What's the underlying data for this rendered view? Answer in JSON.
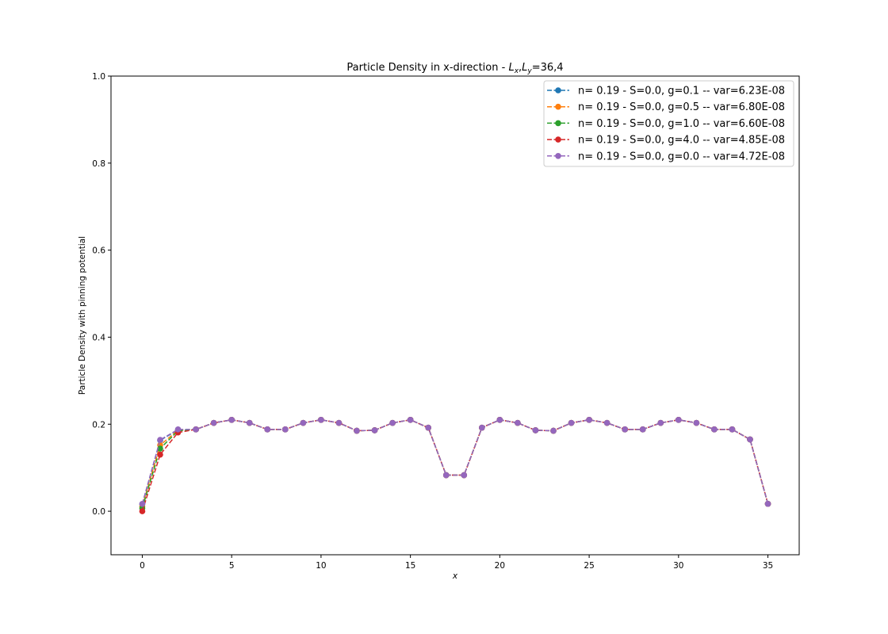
{
  "chart_data": {
    "type": "line",
    "title_main": "Particle Density in x-direction - ",
    "title_lx": "L",
    "title_lx_sub": "x",
    "title_sep": ",",
    "title_ly": "L",
    "title_ly_sub": "y",
    "title_tail": "=36,4",
    "xlabel": "x",
    "ylabel": "Particle Density with pinning potential",
    "xlim": [
      -1.75,
      36.75
    ],
    "ylim": [
      -0.1,
      1.0
    ],
    "xticks": [
      0,
      5,
      10,
      15,
      20,
      25,
      30,
      35
    ],
    "yticks": [
      0.0,
      0.2,
      0.4,
      0.6,
      0.8,
      1.0
    ],
    "ytick_labels": [
      "0.0",
      "0.2",
      "0.4",
      "0.6",
      "0.8",
      "1.0"
    ],
    "grid": false,
    "legend_position": "top-right",
    "x": [
      0,
      1,
      2,
      3,
      4,
      5,
      6,
      7,
      8,
      9,
      10,
      11,
      12,
      13,
      14,
      15,
      16,
      17,
      18,
      19,
      20,
      21,
      22,
      23,
      24,
      25,
      26,
      27,
      28,
      29,
      30,
      31,
      32,
      33,
      34,
      35
    ],
    "series": [
      {
        "name": "n= 0.19 - S=0.0, g=0.1 -- var=6.23E-08",
        "color": "#1f77b4",
        "values": [
          0.016,
          0.163,
          0.187,
          0.188,
          0.203,
          0.21,
          0.203,
          0.188,
          0.188,
          0.203,
          0.21,
          0.203,
          0.185,
          0.186,
          0.203,
          0.21,
          0.192,
          0.083,
          0.083,
          0.192,
          0.21,
          0.203,
          0.186,
          0.185,
          0.203,
          0.21,
          0.203,
          0.188,
          0.188,
          0.203,
          0.21,
          0.203,
          0.188,
          0.188,
          0.165,
          0.017
        ]
      },
      {
        "name": "n= 0.19 - S=0.0, g=0.5 -- var=6.80E-08",
        "color": "#ff7f0e",
        "values": [
          0.011,
          0.152,
          0.186,
          0.188,
          0.203,
          0.21,
          0.203,
          0.188,
          0.188,
          0.203,
          0.21,
          0.203,
          0.185,
          0.186,
          0.203,
          0.21,
          0.192,
          0.083,
          0.083,
          0.192,
          0.21,
          0.203,
          0.186,
          0.185,
          0.203,
          0.21,
          0.203,
          0.188,
          0.188,
          0.203,
          0.21,
          0.203,
          0.188,
          0.188,
          0.165,
          0.017
        ]
      },
      {
        "name": "n= 0.19 - S=0.0, g=1.0 -- var=6.60E-08",
        "color": "#2ca02c",
        "values": [
          0.007,
          0.144,
          0.185,
          0.188,
          0.203,
          0.21,
          0.203,
          0.188,
          0.188,
          0.203,
          0.21,
          0.203,
          0.185,
          0.186,
          0.203,
          0.21,
          0.192,
          0.083,
          0.083,
          0.192,
          0.21,
          0.203,
          0.186,
          0.185,
          0.203,
          0.21,
          0.203,
          0.188,
          0.188,
          0.203,
          0.21,
          0.203,
          0.188,
          0.188,
          0.165,
          0.017
        ]
      },
      {
        "name": "n= 0.19 - S=0.0, g=4.0 -- var=4.85E-08",
        "color": "#d62728",
        "values": [
          0.0,
          0.13,
          0.181,
          0.188,
          0.203,
          0.21,
          0.203,
          0.188,
          0.188,
          0.203,
          0.21,
          0.203,
          0.185,
          0.186,
          0.203,
          0.21,
          0.192,
          0.083,
          0.083,
          0.192,
          0.21,
          0.203,
          0.186,
          0.185,
          0.203,
          0.21,
          0.203,
          0.188,
          0.188,
          0.203,
          0.21,
          0.203,
          0.188,
          0.188,
          0.165,
          0.017
        ]
      },
      {
        "name": "n= 0.19 - S=0.0, g=0.0 -- var=4.72E-08",
        "color": "#9467bd",
        "values": [
          0.017,
          0.164,
          0.188,
          0.188,
          0.203,
          0.21,
          0.203,
          0.188,
          0.188,
          0.203,
          0.21,
          0.203,
          0.185,
          0.186,
          0.203,
          0.21,
          0.192,
          0.083,
          0.083,
          0.192,
          0.21,
          0.203,
          0.186,
          0.185,
          0.203,
          0.21,
          0.203,
          0.188,
          0.188,
          0.203,
          0.21,
          0.203,
          0.188,
          0.188,
          0.165,
          0.017
        ]
      }
    ]
  }
}
